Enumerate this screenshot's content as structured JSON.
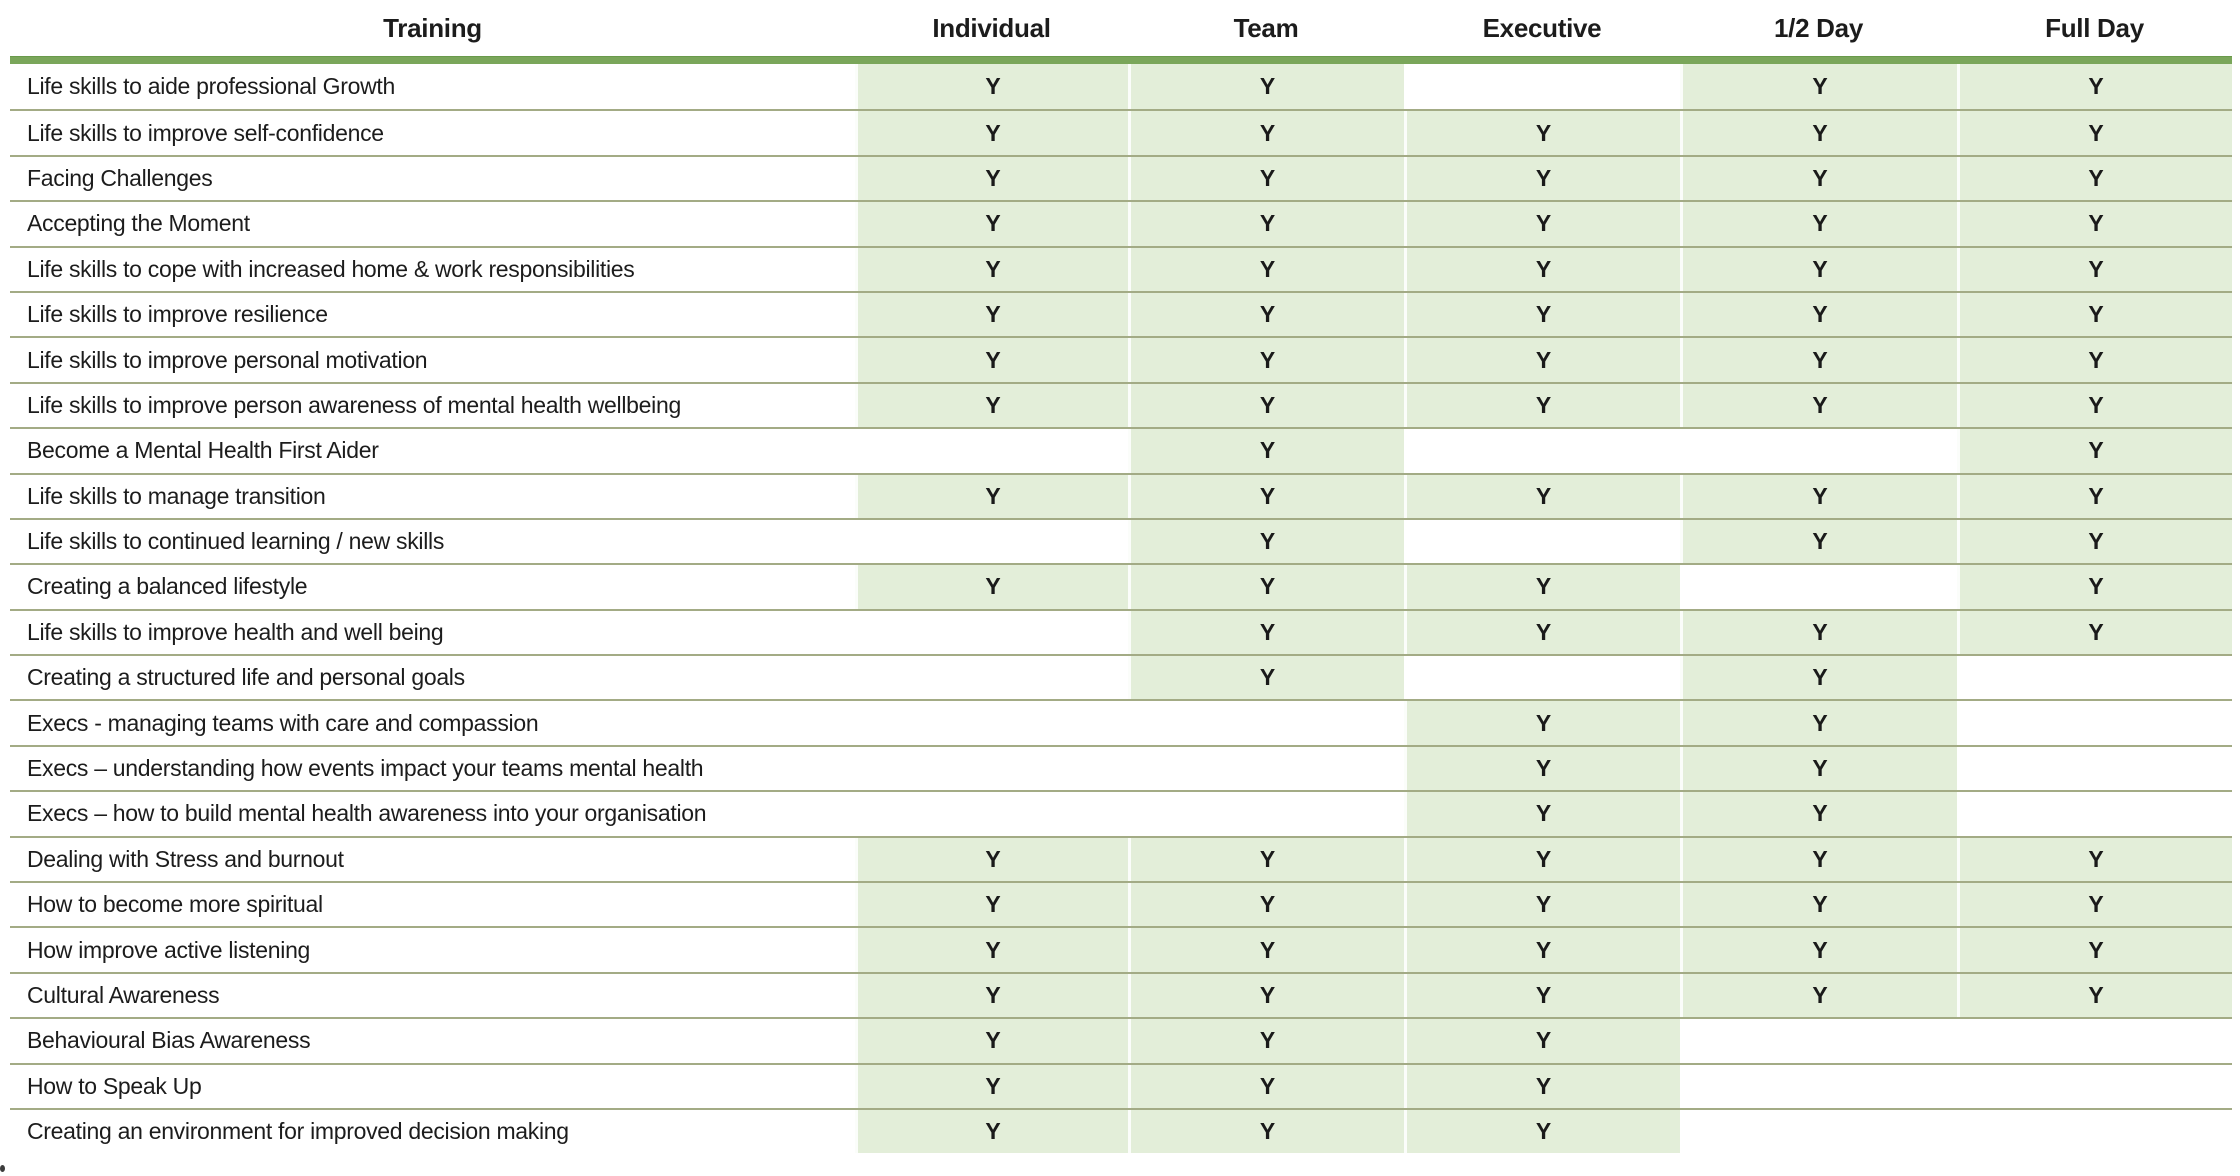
{
  "table": {
    "columns": [
      "Training",
      "Individual",
      "Team",
      "Executive",
      "1/2 Day",
      "Full Day"
    ],
    "yes_mark": "Y",
    "rows": [
      {
        "label": "Life skills to aide professional Growth",
        "marks": [
          "Y",
          "Y",
          "",
          "Y",
          "Y"
        ]
      },
      {
        "label": "Life skills to improve self-confidence",
        "marks": [
          "Y",
          "Y",
          "Y",
          "Y",
          "Y"
        ]
      },
      {
        "label": "Facing Challenges",
        "marks": [
          "Y",
          "Y",
          "Y",
          "Y",
          "Y"
        ]
      },
      {
        "label": "Accepting the Moment",
        "marks": [
          "Y",
          "Y",
          "Y",
          "Y",
          "Y"
        ]
      },
      {
        "label": "Life skills to cope with increased home & work responsibilities",
        "marks": [
          "Y",
          "Y",
          "Y",
          "Y",
          "Y"
        ]
      },
      {
        "label": "Life skills to improve resilience",
        "marks": [
          "Y",
          "Y",
          "Y",
          "Y",
          "Y"
        ]
      },
      {
        "label": "Life skills to improve personal motivation",
        "marks": [
          "Y",
          "Y",
          "Y",
          "Y",
          "Y"
        ]
      },
      {
        "label": "Life skills to improve person awareness of mental health wellbeing",
        "marks": [
          "Y",
          "Y",
          "Y",
          "Y",
          "Y"
        ]
      },
      {
        "label": "Become a Mental Health First Aider",
        "marks": [
          "",
          "Y",
          "",
          "",
          "Y"
        ]
      },
      {
        "label": "Life skills to manage transition",
        "marks": [
          "Y",
          "Y",
          "Y",
          "Y",
          "Y"
        ]
      },
      {
        "label": "Life skills to continued learning / new skills",
        "marks": [
          "",
          "Y",
          "",
          "Y",
          "Y"
        ]
      },
      {
        "label": "Creating a balanced lifestyle",
        "marks": [
          "Y",
          "Y",
          "Y",
          "",
          "Y"
        ]
      },
      {
        "label": "Life skills to improve health and well being",
        "marks": [
          "",
          "Y",
          "Y",
          "Y",
          "Y"
        ]
      },
      {
        "label": "Creating a structured life and personal goals",
        "marks": [
          "",
          "Y",
          "",
          "Y",
          ""
        ]
      },
      {
        "label": "Execs - managing teams with care and compassion",
        "marks": [
          "",
          "",
          "Y",
          "Y",
          ""
        ]
      },
      {
        "label": "Execs – understanding how events impact your teams mental health",
        "marks": [
          "",
          "",
          "Y",
          "Y",
          ""
        ]
      },
      {
        "label": "Execs – how to build mental health awareness into your organisation",
        "marks": [
          "",
          "",
          "Y",
          "Y",
          ""
        ]
      },
      {
        "label": "Dealing with Stress and burnout",
        "marks": [
          "Y",
          "Y",
          "Y",
          "Y",
          "Y"
        ]
      },
      {
        "label": "How to become more spiritual",
        "marks": [
          "Y",
          "Y",
          "Y",
          "Y",
          "Y"
        ]
      },
      {
        "label": "How improve active listening",
        "marks": [
          "Y",
          "Y",
          "Y",
          "Y",
          "Y"
        ]
      },
      {
        "label": "Cultural Awareness",
        "marks": [
          "Y",
          "Y",
          "Y",
          "Y",
          "Y"
        ]
      },
      {
        "label": "Behavioural Bias Awareness",
        "marks": [
          "Y",
          "Y",
          "Y",
          "",
          ""
        ]
      },
      {
        "label": "How to Speak Up",
        "marks": [
          "Y",
          "Y",
          "Y",
          "",
          ""
        ]
      },
      {
        "label": "Creating an environment for improved decision making",
        "marks": [
          "Y",
          "Y",
          "Y",
          "",
          ""
        ]
      }
    ]
  },
  "colors": {
    "accent_bar": "#7aa65a",
    "cell_green": "#e3eed9",
    "row_separator": "#a3ab85",
    "text": "#1c1c1c"
  }
}
